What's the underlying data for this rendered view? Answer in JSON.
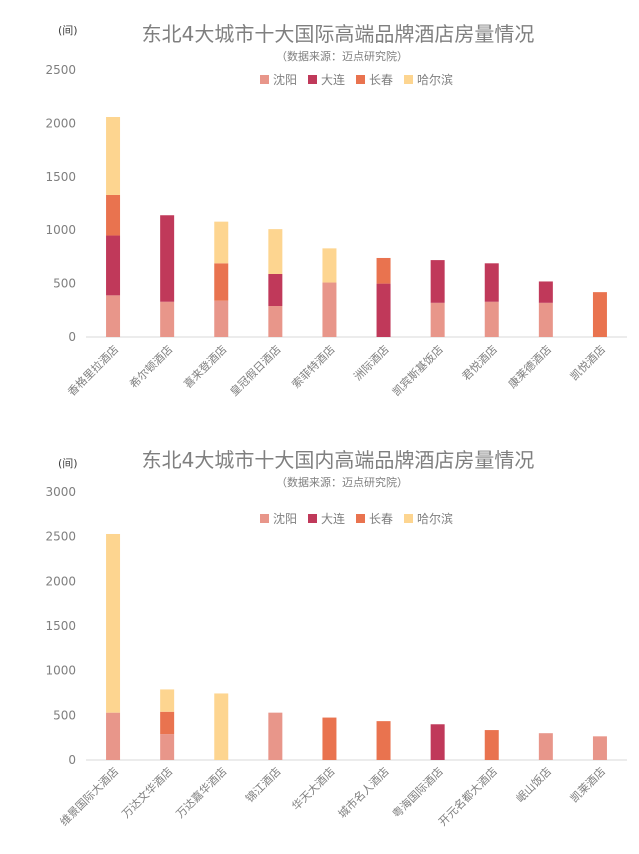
{
  "chart_data": [
    {
      "type": "bar",
      "stacked": true,
      "title": "东北4大城市十大国际高端品牌酒店房量情况",
      "subtitle": "（数据来源：迈点研究院）",
      "unit": "(间)",
      "ylim": [
        0,
        2500
      ],
      "yticks": [
        0,
        500,
        1000,
        1500,
        2000,
        2500
      ],
      "grid": false,
      "legend_position": "top-center",
      "categories": [
        "香格里拉酒店",
        "希尔顿酒店",
        "喜来登酒店",
        "皇冠假日酒店",
        "索菲特酒店",
        "洲际酒店",
        "凯宾斯基饭店",
        "君悦酒店",
        "康莱德酒店",
        "凯悦酒店"
      ],
      "series": [
        {
          "name": "沈阳",
          "color": "#E8968A",
          "values": [
            390,
            330,
            340,
            290,
            510,
            0,
            320,
            330,
            320,
            0
          ]
        },
        {
          "name": "大连",
          "color": "#C0395A",
          "values": [
            560,
            810,
            0,
            300,
            0,
            500,
            400,
            360,
            200,
            0
          ]
        },
        {
          "name": "长春",
          "color": "#E9734F",
          "values": [
            380,
            0,
            350,
            0,
            0,
            240,
            0,
            0,
            0,
            420
          ]
        },
        {
          "name": "哈尔滨",
          "color": "#FDD590",
          "values": [
            730,
            0,
            390,
            420,
            320,
            0,
            0,
            0,
            0,
            0
          ]
        }
      ]
    },
    {
      "type": "bar",
      "stacked": true,
      "title": "东北4大城市十大国内高端品牌酒店房量情况",
      "subtitle": "（数据来源：迈点研究院）",
      "unit": "(间)",
      "ylim": [
        0,
        3000
      ],
      "yticks": [
        0,
        500,
        1000,
        1500,
        2000,
        2500,
        3000
      ],
      "grid": false,
      "legend_position": "top-center",
      "categories": [
        "维景国际大酒店",
        "万达文华酒店",
        "万达嘉华酒店",
        "锦江酒店",
        "华天大酒店",
        "城市名人酒店",
        "粤海国际酒店",
        "开元名都大酒店",
        "岷山饭店",
        "凯莱酒店"
      ],
      "series": [
        {
          "name": "沈阳",
          "color": "#E8968A",
          "values": [
            530,
            290,
            0,
            530,
            0,
            0,
            0,
            0,
            300,
            265
          ]
        },
        {
          "name": "大连",
          "color": "#C0395A",
          "values": [
            0,
            0,
            0,
            0,
            0,
            0,
            400,
            0,
            0,
            0
          ]
        },
        {
          "name": "长春",
          "color": "#E9734F",
          "values": [
            0,
            250,
            0,
            0,
            475,
            435,
            0,
            335,
            0,
            0
          ]
        },
        {
          "name": "哈尔滨",
          "color": "#FDD590",
          "values": [
            2000,
            250,
            745,
            0,
            0,
            0,
            0,
            0,
            0,
            0
          ]
        }
      ]
    }
  ]
}
